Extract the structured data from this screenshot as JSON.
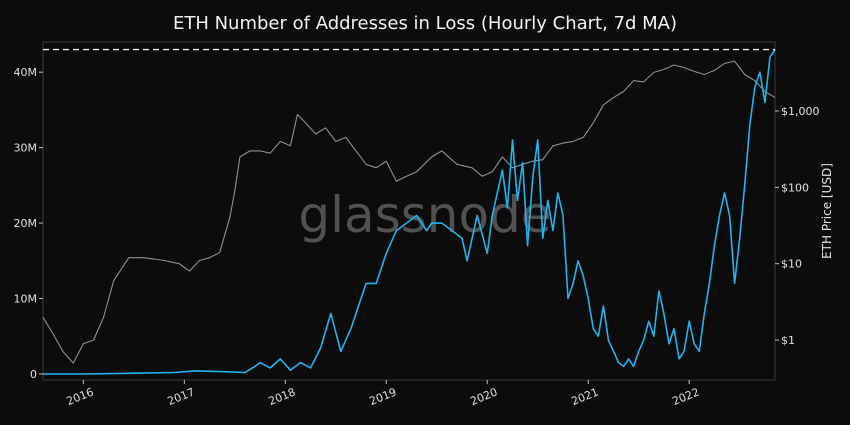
{
  "chart_data": {
    "type": "line",
    "title": "ETH Number of Addresses in Loss (Hourly Chart, 7d MA)",
    "xlabel": "",
    "ylabel": "",
    "y2label": "ETH Price [USD]",
    "watermark": "glassnode",
    "x_ticks": [
      "2016",
      "2017",
      "2018",
      "2019",
      "2020",
      "2021",
      "2022"
    ],
    "y_ticks": [
      {
        "value": 0,
        "label": "0"
      },
      {
        "value": 10,
        "label": "10M"
      },
      {
        "value": 20,
        "label": "20M"
      },
      {
        "value": 30,
        "label": "30M"
      },
      {
        "value": 40,
        "label": "40M"
      }
    ],
    "y2_ticks": [
      {
        "value": 1,
        "label": "$1"
      },
      {
        "value": 10,
        "label": "$10"
      },
      {
        "value": 100,
        "label": "$100"
      },
      {
        "value": 1000,
        "label": "$1,000"
      }
    ],
    "ylim": [
      -0.8,
      44
    ],
    "y2lim": [
      0.3,
      8000
    ],
    "y2scale": "log",
    "xlim": [
      2015.6,
      2022.85
    ],
    "reference_line": 43,
    "grid": false,
    "colors": {
      "background": "#0c0c0c",
      "addresses": "#1fb5ee",
      "price": "#8f8f8f",
      "text": "#e0e0e0",
      "reference": "#e8e8e8"
    },
    "series": [
      {
        "key": "addresses",
        "axis": "left",
        "unit": "M",
        "x": [
          2015.6,
          2016.0,
          2016.5,
          2016.9,
          2017.1,
          2017.4,
          2017.6,
          2017.7,
          2017.75,
          2017.85,
          2017.95,
          2018.05,
          2018.15,
          2018.25,
          2018.35,
          2018.45,
          2018.55,
          2018.65,
          2018.75,
          2018.8,
          2018.9,
          2019.0,
          2019.1,
          2019.2,
          2019.3,
          2019.4,
          2019.45,
          2019.55,
          2019.65,
          2019.75,
          2019.8,
          2019.9,
          2020.0,
          2020.05,
          2020.1,
          2020.15,
          2020.2,
          2020.25,
          2020.3,
          2020.35,
          2020.4,
          2020.45,
          2020.5,
          2020.55,
          2020.6,
          2020.65,
          2020.7,
          2020.75,
          2020.8,
          2020.85,
          2020.9,
          2020.95,
          2021.0,
          2021.05,
          2021.1,
          2021.15,
          2021.2,
          2021.25,
          2021.3,
          2021.35,
          2021.4,
          2021.45,
          2021.5,
          2021.55,
          2021.6,
          2021.65,
          2021.7,
          2021.75,
          2021.8,
          2021.85,
          2021.9,
          2021.95,
          2022.0,
          2022.05,
          2022.1,
          2022.15,
          2022.2,
          2022.25,
          2022.3,
          2022.35,
          2022.4,
          2022.45,
          2022.5,
          2022.55,
          2022.6,
          2022.65,
          2022.7,
          2022.75,
          2022.8,
          2022.85
        ],
        "values": [
          0,
          0,
          0.1,
          0.2,
          0.4,
          0.3,
          0.2,
          1,
          1.5,
          0.8,
          2,
          0.5,
          1.5,
          0.8,
          3.5,
          8,
          3,
          6,
          10,
          12,
          12,
          16,
          19,
          20,
          21,
          19,
          20,
          20,
          19,
          18,
          15,
          21,
          16,
          21,
          24,
          27,
          22,
          31,
          23,
          28,
          17,
          26,
          31,
          18,
          23,
          19,
          24,
          21,
          10,
          12,
          15,
          13,
          10,
          6,
          5,
          9,
          4.5,
          3,
          1.5,
          1,
          2,
          1,
          3,
          4.5,
          7,
          5,
          11,
          8,
          4,
          6,
          2,
          3,
          7,
          4,
          3,
          8,
          12,
          17,
          21,
          24,
          21,
          12,
          18,
          25,
          33,
          38,
          40,
          36,
          42,
          43
        ]
      },
      {
        "key": "price",
        "axis": "right",
        "unit": "USD",
        "x": [
          2015.6,
          2015.7,
          2015.8,
          2015.9,
          2016.0,
          2016.1,
          2016.2,
          2016.3,
          2016.45,
          2016.6,
          2016.8,
          2016.95,
          2017.05,
          2017.15,
          2017.25,
          2017.35,
          2017.45,
          2017.5,
          2017.55,
          2017.65,
          2017.75,
          2017.85,
          2017.95,
          2018.05,
          2018.12,
          2018.2,
          2018.3,
          2018.4,
          2018.5,
          2018.6,
          2018.7,
          2018.8,
          2018.9,
          2019.0,
          2019.1,
          2019.2,
          2019.3,
          2019.45,
          2019.55,
          2019.7,
          2019.85,
          2019.95,
          2020.05,
          2020.15,
          2020.25,
          2020.35,
          2020.45,
          2020.55,
          2020.65,
          2020.75,
          2020.85,
          2020.95,
          2021.05,
          2021.15,
          2021.25,
          2021.35,
          2021.45,
          2021.55,
          2021.65,
          2021.75,
          2021.85,
          2021.95,
          2022.05,
          2022.15,
          2022.25,
          2022.35,
          2022.45,
          2022.55,
          2022.65,
          2022.75,
          2022.85
        ],
        "values": [
          2,
          1.2,
          0.7,
          0.5,
          0.9,
          1,
          2,
          6,
          12,
          12,
          11,
          10,
          8,
          11,
          12,
          14,
          40,
          90,
          250,
          300,
          300,
          280,
          400,
          350,
          900,
          700,
          500,
          600,
          400,
          450,
          300,
          200,
          180,
          220,
          120,
          140,
          160,
          250,
          300,
          200,
          180,
          140,
          160,
          250,
          180,
          200,
          220,
          230,
          350,
          380,
          400,
          450,
          700,
          1200,
          1500,
          1800,
          2500,
          2400,
          3200,
          3500,
          4000,
          3700,
          3300,
          3000,
          3400,
          4200,
          4500,
          3000,
          2500,
          1800,
          1500
        ]
      }
    ]
  }
}
